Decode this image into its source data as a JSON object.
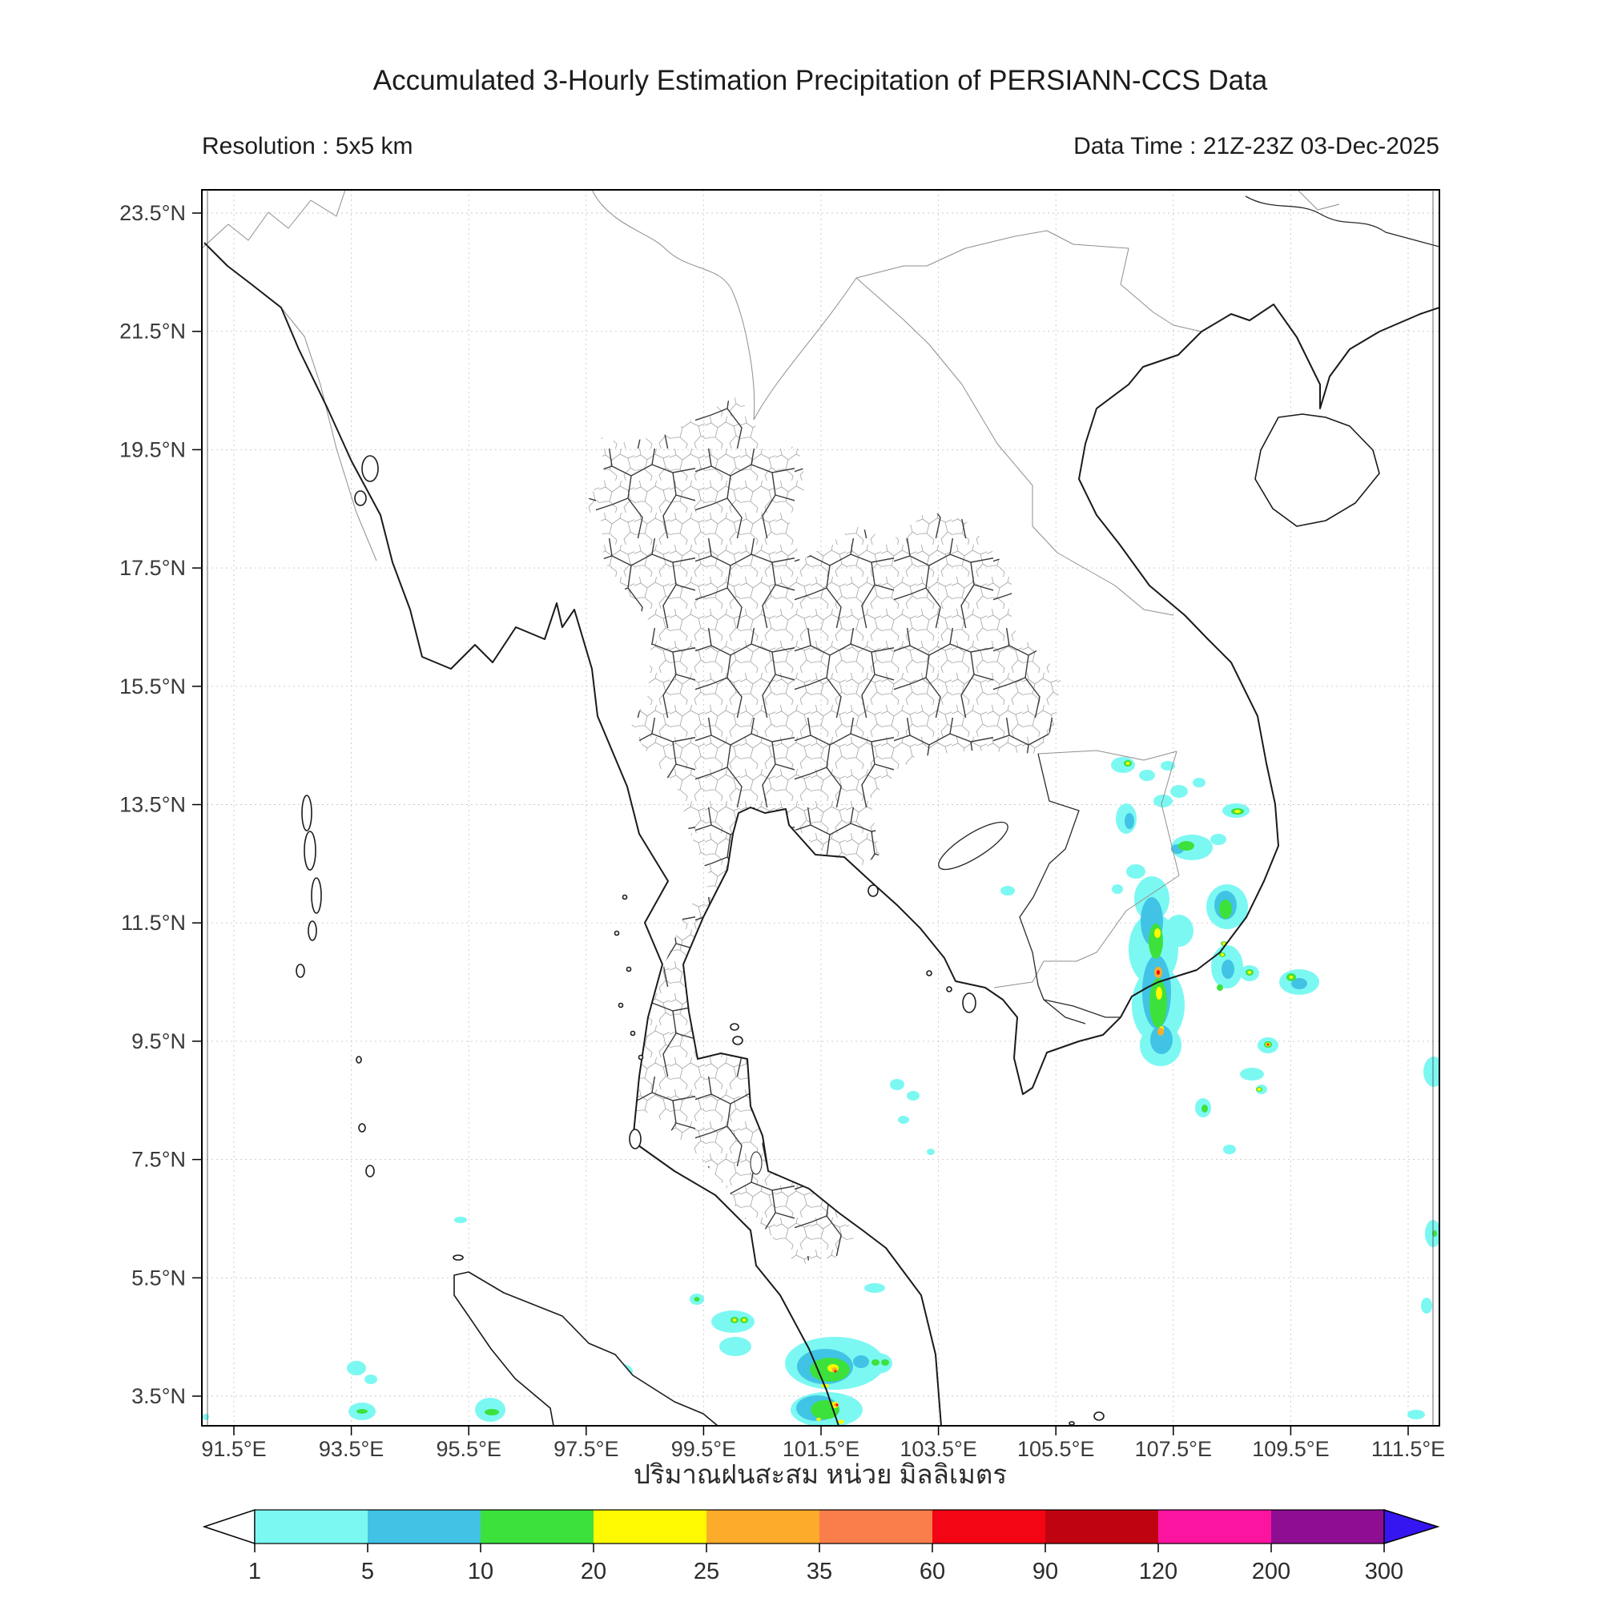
{
  "header": {
    "title": "Accumulated 3-Hourly Estimation Precipitation of PERSIANN-CCS Data",
    "resolution_label": "Resolution : 5x5 km",
    "data_time_label": "Data Time : 21Z-23Z 03-Dec-2025"
  },
  "map": {
    "x_tick_labels": [
      "91.5°E",
      "93.5°E",
      "95.5°E",
      "97.5°E",
      "99.5°E",
      "101.5°E",
      "103.5°E",
      "105.5°E",
      "107.5°E",
      "109.5°E",
      "111.5°E"
    ],
    "y_tick_labels": [
      "23.5°N",
      "21.5°N",
      "19.5°N",
      "17.5°N",
      "15.5°N",
      "13.5°N",
      "11.5°N",
      "9.5°N",
      "7.5°N",
      "5.5°N",
      "3.5°N"
    ],
    "grid_visible": true
  },
  "colorbar": {
    "xlabel": "ปริมาณฝนสะสม หน่วย มิลลิเมตร",
    "tick_labels": [
      "1",
      "5",
      "10",
      "20",
      "25",
      "35",
      "60",
      "90",
      "120",
      "200",
      "300"
    ],
    "thresholds_mm": [
      1,
      5,
      10,
      20,
      25,
      35,
      60,
      90,
      120,
      200,
      300
    ],
    "segment_colors": [
      "#7CF8F2",
      "#41C3E6",
      "#3CE13C",
      "#FDF900",
      "#FCAB2A",
      "#FA7E4B",
      "#F30514",
      "#C00310",
      "#FA14A0",
      "#8E0D93"
    ],
    "underflow_color": "#FFFFFF",
    "overflow_color": "#3516F0"
  },
  "precip_summary": {
    "heaviest_cluster": "southern Vietnam coast near 107.5E 10.5-13.5N, peaks 35-90 mm",
    "secondary_cluster": "Malay peninsula / Sumatra near 101.5-102.5E 3-4.5N, peaks 35-90 mm",
    "light_rain": "scattered 1-10 mm patches over Gulf of Thailand, Andaman Sea and South China Sea edge"
  }
}
